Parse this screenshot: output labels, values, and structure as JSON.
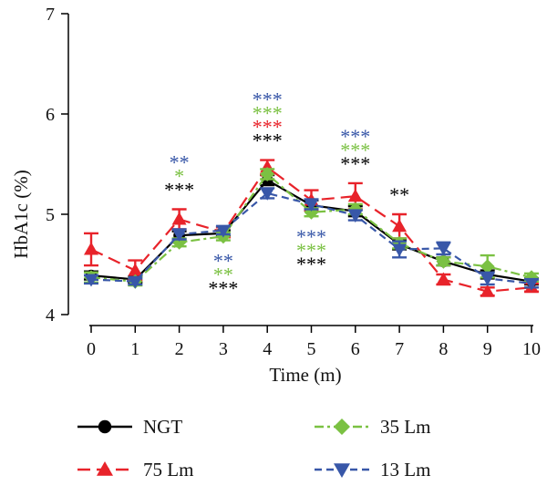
{
  "chart_data": {
    "type": "line",
    "title": "",
    "xlabel": "Time (m)",
    "ylabel": "HbA1c (%)",
    "xlim": [
      0,
      10
    ],
    "ylim": [
      4,
      7
    ],
    "x": [
      0,
      1,
      2,
      3,
      4,
      5,
      6,
      7,
      8,
      9,
      10
    ],
    "x_ticks": [
      "0",
      "1",
      "2",
      "3",
      "4",
      "5",
      "6",
      "7",
      "8",
      "9",
      "10"
    ],
    "y_ticks": [
      "4",
      "5",
      "6",
      "7"
    ],
    "grid": false,
    "legend_position": "bottom",
    "series": [
      {
        "name": "NGT",
        "color": "#000000",
        "marker": "circle",
        "dash": "solid",
        "values": [
          4.39,
          4.35,
          4.79,
          4.81,
          5.34,
          5.09,
          5.03,
          4.7,
          4.53,
          4.4,
          4.33
        ],
        "errors": [
          0.04,
          0.03,
          0.04,
          0.03,
          0.05,
          0.05,
          0.05,
          0.05,
          0.04,
          0.04,
          0.03
        ]
      },
      {
        "name": "75 Lm",
        "color": "#e8232a",
        "marker": "triangle-up",
        "dash": "long-dash",
        "values": [
          4.65,
          4.44,
          4.95,
          4.82,
          5.47,
          5.14,
          5.18,
          4.88,
          4.35,
          4.23,
          4.27
        ],
        "errors": [
          0.16,
          0.1,
          0.1,
          0.05,
          0.07,
          0.1,
          0.13,
          0.12,
          0.05,
          0.04,
          0.04
        ]
      },
      {
        "name": "35 Lm",
        "color": "#7bc143",
        "marker": "diamond",
        "dash": "dash-dot",
        "values": [
          4.37,
          4.33,
          4.72,
          4.78,
          5.4,
          5.02,
          5.05,
          4.71,
          4.53,
          4.48,
          4.37
        ],
        "errors": [
          0.05,
          0.04,
          0.04,
          0.04,
          0.05,
          0.04,
          0.05,
          0.05,
          0.04,
          0.11,
          0.04
        ]
      },
      {
        "name": "13 Lm",
        "color": "#3857a8",
        "marker": "triangle-down",
        "dash": "dashed",
        "values": [
          4.35,
          4.33,
          4.8,
          4.84,
          5.21,
          5.1,
          4.99,
          4.65,
          4.66,
          4.36,
          4.31
        ],
        "errors": [
          0.04,
          0.03,
          0.05,
          0.04,
          0.05,
          0.05,
          0.05,
          0.08,
          0.06,
          0.06,
          0.04
        ]
      }
    ],
    "annotations": [
      {
        "x": 2,
        "position": "above",
        "rows": [
          {
            "text": "**",
            "color": "#3857a8"
          },
          {
            "text": "*",
            "color": "#7bc143"
          },
          {
            "text": "***",
            "color": "#000000"
          }
        ]
      },
      {
        "x": 3,
        "position": "below",
        "rows": [
          {
            "text": "**",
            "color": "#3857a8"
          },
          {
            "text": "**",
            "color": "#7bc143"
          },
          {
            "text": "***",
            "color": "#000000"
          }
        ]
      },
      {
        "x": 4,
        "position": "above",
        "rows": [
          {
            "text": "***",
            "color": "#3857a8"
          },
          {
            "text": "***",
            "color": "#7bc143"
          },
          {
            "text": "***",
            "color": "#e8232a"
          },
          {
            "text": "***",
            "color": "#000000"
          }
        ]
      },
      {
        "x": 5,
        "position": "below",
        "rows": [
          {
            "text": "***",
            "color": "#3857a8"
          },
          {
            "text": "***",
            "color": "#7bc143"
          },
          {
            "text": "***",
            "color": "#000000"
          }
        ]
      },
      {
        "x": 6,
        "position": "above",
        "rows": [
          {
            "text": "***",
            "color": "#3857a8"
          },
          {
            "text": "***",
            "color": "#7bc143"
          },
          {
            "text": "***",
            "color": "#000000"
          }
        ]
      },
      {
        "x": 7,
        "position": "above",
        "rows": [
          {
            "text": "**",
            "color": "#000000"
          }
        ]
      }
    ]
  }
}
